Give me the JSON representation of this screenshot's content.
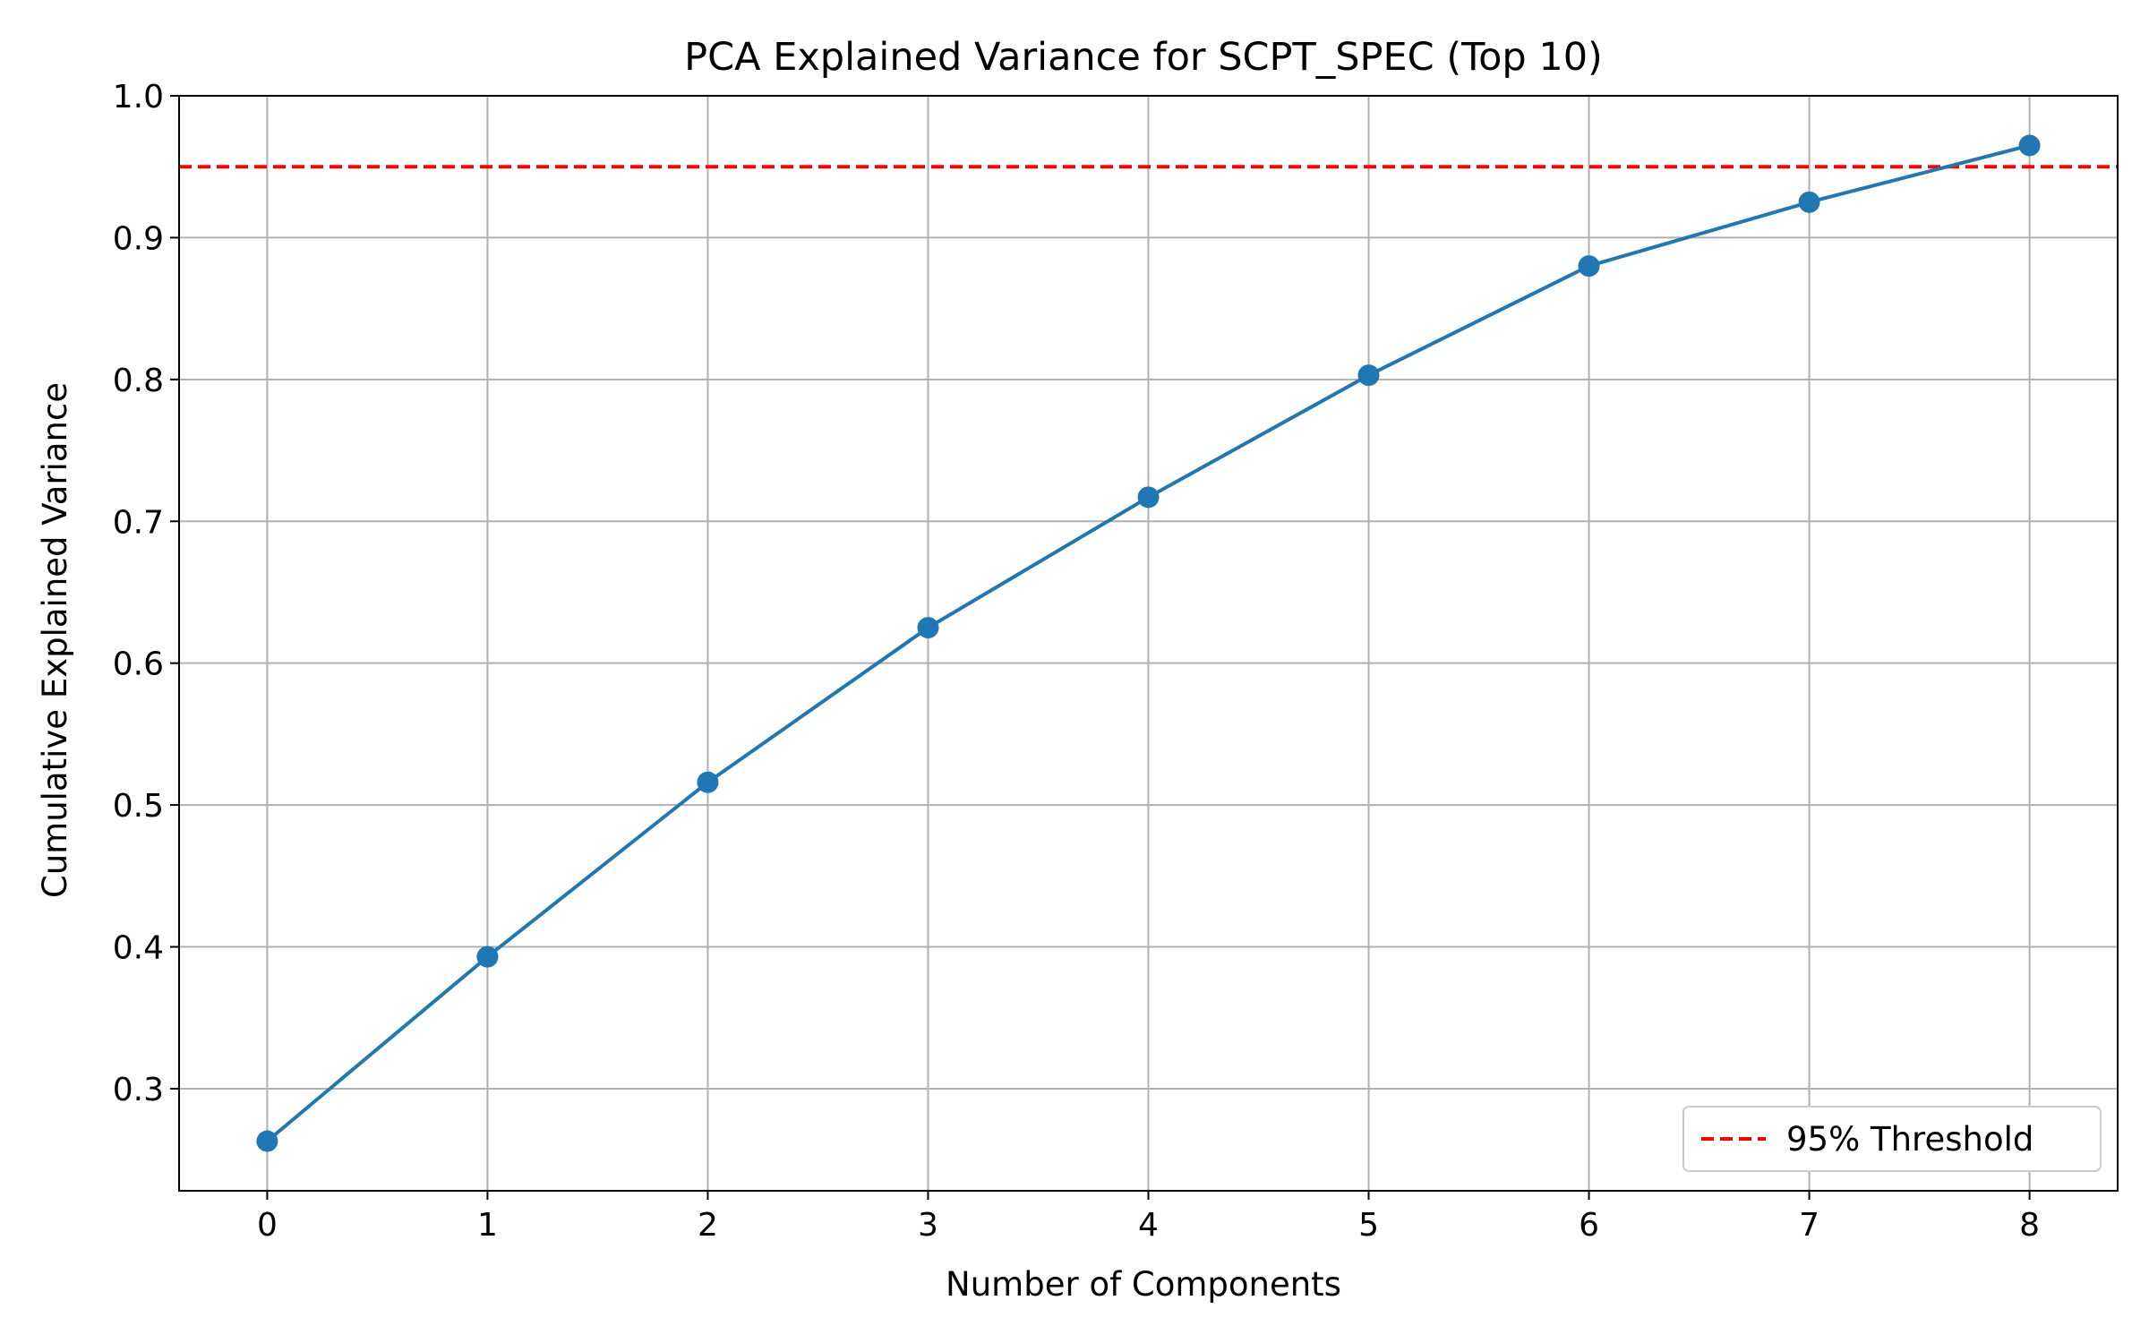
{
  "chart_data": {
    "type": "line",
    "title": "PCA Explained Variance for SCPT_SPEC (Top 10)",
    "xlabel": "Number of Components",
    "ylabel": "Cumulative Explained Variance",
    "x": [
      0,
      1,
      2,
      3,
      4,
      5,
      6,
      7,
      8
    ],
    "series": [
      {
        "values": [
          0.263,
          0.393,
          0.516,
          0.625,
          0.717,
          0.803,
          0.88,
          0.925,
          0.965
        ],
        "color": "#1f77b4",
        "marker": "circle"
      }
    ],
    "threshold": {
      "value": 0.95,
      "label": "95% Threshold",
      "color": "#ff0000",
      "style": "dashed"
    },
    "xlim": [
      -0.4,
      8.4
    ],
    "ylim": [
      0.228,
      1.0
    ],
    "xticks": [
      "0",
      "1",
      "2",
      "3",
      "4",
      "5",
      "6",
      "7",
      "8"
    ],
    "yticks": [
      "0.3",
      "0.4",
      "0.5",
      "0.6",
      "0.7",
      "0.8",
      "0.9",
      "1.0"
    ],
    "grid": true,
    "legend_position": "bottom-right"
  }
}
